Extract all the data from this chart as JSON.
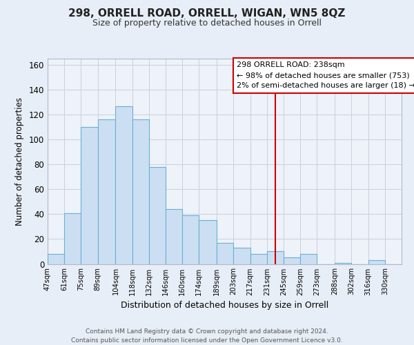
{
  "title": "298, ORRELL ROAD, ORRELL, WIGAN, WN5 8QZ",
  "subtitle": "Size of property relative to detached houses in Orrell",
  "xlabel": "Distribution of detached houses by size in Orrell",
  "ylabel": "Number of detached properties",
  "bar_labels": [
    "47sqm",
    "61sqm",
    "75sqm",
    "89sqm",
    "104sqm",
    "118sqm",
    "132sqm",
    "146sqm",
    "160sqm",
    "174sqm",
    "189sqm",
    "203sqm",
    "217sqm",
    "231sqm",
    "245sqm",
    "259sqm",
    "273sqm",
    "288sqm",
    "302sqm",
    "316sqm",
    "330sqm"
  ],
  "bar_heights": [
    8,
    41,
    110,
    116,
    127,
    116,
    78,
    44,
    39,
    35,
    17,
    13,
    8,
    10,
    5,
    8,
    0,
    1,
    0,
    3,
    0
  ],
  "bar_color": "#ccdff2",
  "bar_edge_color": "#6aaed6",
  "ylim": [
    0,
    165
  ],
  "yticks": [
    0,
    20,
    40,
    60,
    80,
    100,
    120,
    140,
    160
  ],
  "vline_x": 238,
  "vline_color": "#cc0000",
  "annotation_title": "298 ORRELL ROAD: 238sqm",
  "annotation_line1": "← 98% of detached houses are smaller (753)",
  "annotation_line2": "2% of semi-detached houses are larger (18) →",
  "annotation_box_color": "#ffffff",
  "annotation_box_edge": "#cc0000",
  "footer1": "Contains HM Land Registry data © Crown copyright and database right 2024.",
  "footer2": "Contains public sector information licensed under the Open Government Licence v3.0.",
  "bg_color": "#e8eef7",
  "plot_bg_color": "#eef2f9",
  "grid_color": "#c8d0dc",
  "bin_edges": [
    47,
    61,
    75,
    89,
    104,
    118,
    132,
    146,
    160,
    174,
    189,
    203,
    217,
    231,
    245,
    259,
    273,
    288,
    302,
    316,
    330,
    344
  ]
}
